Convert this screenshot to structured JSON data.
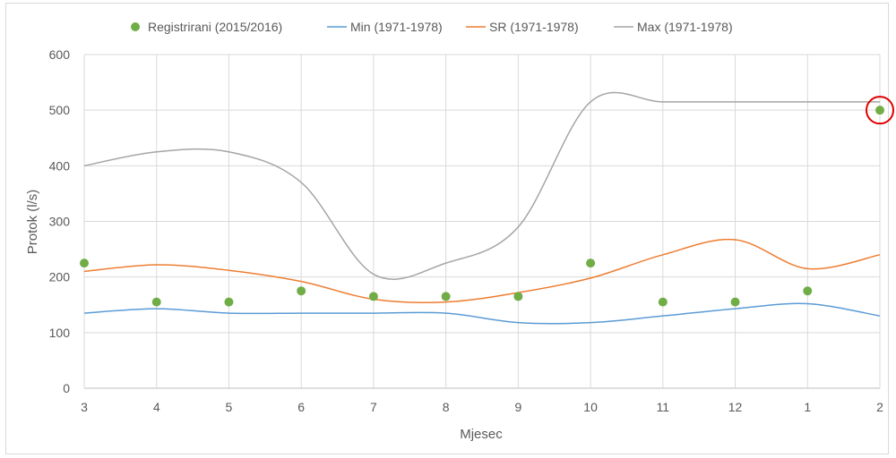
{
  "chart_data": {
    "type": "line",
    "categories": [
      "3",
      "4",
      "5",
      "6",
      "7",
      "8",
      "9",
      "10",
      "11",
      "12",
      "1",
      "2"
    ],
    "xlabel": "Mjesec",
    "ylabel": "Protok (l/s)",
    "ylim": [
      0,
      600
    ],
    "yticks": [
      0,
      100,
      200,
      300,
      400,
      500,
      600
    ],
    "grid": true,
    "legend_position": "top",
    "series": [
      {
        "name": "Registrirani (2015/2016)",
        "style": "scatter",
        "color": "#70ad47",
        "values": [
          225,
          155,
          155,
          175,
          165,
          165,
          165,
          225,
          155,
          155,
          175,
          500
        ]
      },
      {
        "name": "Min (1971-1978)",
        "style": "line",
        "color": "#5b9bd5",
        "values": [
          135,
          143,
          135,
          135,
          135,
          135,
          118,
          118,
          130,
          143,
          152,
          130
        ]
      },
      {
        "name": "SR (1971-1978)",
        "style": "line",
        "color": "#ed7d31",
        "values": [
          210,
          222,
          212,
          192,
          160,
          155,
          172,
          198,
          240,
          267,
          215,
          240
        ]
      },
      {
        "name": "Max (1971-1978)",
        "style": "line",
        "color": "#a5a5a5",
        "values": [
          400,
          425,
          425,
          370,
          205,
          225,
          290,
          515,
          515,
          515,
          515,
          515
        ]
      }
    ],
    "annotations": [
      {
        "type": "circle",
        "category": "2",
        "value": 500,
        "color": "#e00000"
      }
    ]
  }
}
